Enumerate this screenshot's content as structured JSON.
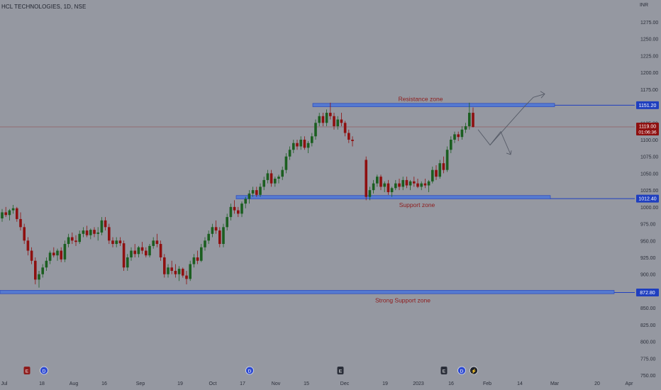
{
  "header": {
    "symbol": "HCL TECHNOLOGIES, 1D, NSE",
    "currency": "INR"
  },
  "colors": {
    "background": "#9598a1",
    "up": "#1b5e20",
    "down": "#8e1010",
    "zone_fill": "#3f6fe0",
    "zone_line": "#1f3fbf",
    "zone_text": "#8e1b1b",
    "axis_text": "#2a2e39",
    "price_line": "#8e1b1b"
  },
  "annotations": {
    "resistance_label": "Resistance zone",
    "support_label": "Support zone",
    "strong_support_label": "Strong Support zone"
  },
  "price_tags": {
    "resistance": "1151.20",
    "support": "1012.40",
    "strong_support": "872.80",
    "last_price": "1119.00",
    "countdown": "01:06:36"
  },
  "event_markers": [
    {
      "label": "E",
      "kind": "earnings"
    },
    {
      "label": "D",
      "kind": "dividend"
    },
    {
      "label": "D",
      "kind": "dividend"
    },
    {
      "label": "E",
      "kind": "earnings"
    },
    {
      "label": "E",
      "kind": "earnings"
    },
    {
      "label": "D",
      "kind": "dividend"
    },
    {
      "label": "⚡",
      "kind": "news"
    }
  ],
  "chart_data": {
    "type": "candlestick",
    "title": "HCL TECHNOLOGIES, 1D, NSE",
    "ylabel": "INR",
    "ylim": [
      742,
      1290
    ],
    "y_ticks": [
      "1275.00",
      "1250.00",
      "1225.00",
      "1200.00",
      "1175.00",
      "1150.00",
      "1125.00",
      "1100.00",
      "1075.00",
      "1050.00",
      "1025.00",
      "1000.00",
      "975.00",
      "950.00",
      "925.00",
      "900.00",
      "875.00",
      "850.00",
      "825.00",
      "800.00",
      "775.00",
      "750.00"
    ],
    "x_ticks": [
      "Jul",
      "18",
      "Aug",
      "16",
      "Sep",
      "19",
      "Oct",
      "17",
      "Nov",
      "15",
      "Dec",
      "19",
      "2023",
      "16",
      "Feb",
      "14",
      "Mar",
      "20",
      "Apr"
    ],
    "grid": false,
    "zones": [
      {
        "name": "Resistance zone",
        "low": 1149,
        "high": 1154,
        "level": 1151.2
      },
      {
        "name": "Support zone",
        "low": 1012,
        "high": 1017,
        "level": 1012.4
      },
      {
        "name": "Strong Support zone",
        "low": 871,
        "high": 876,
        "level": 872.8
      }
    ],
    "last_price": 1119.0,
    "ohlc": [
      [
        983,
        997,
        978,
        992
      ],
      [
        992,
        1000,
        985,
        988
      ],
      [
        988,
        997,
        980,
        995
      ],
      [
        995,
        1003,
        990,
        998
      ],
      [
        998,
        1000,
        978,
        982
      ],
      [
        982,
        992,
        965,
        970
      ],
      [
        970,
        975,
        945,
        950
      ],
      [
        950,
        955,
        928,
        935
      ],
      [
        935,
        940,
        915,
        920
      ],
      [
        920,
        925,
        885,
        892
      ],
      [
        892,
        905,
        880,
        900
      ],
      [
        900,
        915,
        895,
        910
      ],
      [
        910,
        925,
        905,
        920
      ],
      [
        920,
        935,
        915,
        932
      ],
      [
        932,
        940,
        925,
        928
      ],
      [
        928,
        938,
        920,
        935
      ],
      [
        935,
        940,
        918,
        922
      ],
      [
        922,
        950,
        918,
        945
      ],
      [
        945,
        960,
        940,
        955
      ],
      [
        955,
        962,
        945,
        950
      ],
      [
        950,
        958,
        942,
        948
      ],
      [
        948,
        965,
        945,
        960
      ],
      [
        960,
        970,
        955,
        965
      ],
      [
        965,
        972,
        955,
        958
      ],
      [
        958,
        968,
        952,
        966
      ],
      [
        966,
        970,
        955,
        960
      ],
      [
        960,
        970,
        950,
        962
      ],
      [
        962,
        985,
        958,
        980
      ],
      [
        980,
        985,
        965,
        970
      ],
      [
        970,
        975,
        945,
        950
      ],
      [
        950,
        955,
        940,
        945
      ],
      [
        945,
        955,
        940,
        950
      ],
      [
        950,
        955,
        942,
        946
      ],
      [
        946,
        950,
        905,
        910
      ],
      [
        910,
        930,
        905,
        925
      ],
      [
        925,
        940,
        920,
        935
      ],
      [
        935,
        945,
        925,
        930
      ],
      [
        930,
        942,
        925,
        940
      ],
      [
        940,
        948,
        930,
        935
      ],
      [
        935,
        940,
        925,
        928
      ],
      [
        928,
        945,
        925,
        942
      ],
      [
        942,
        955,
        938,
        950
      ],
      [
        950,
        960,
        940,
        945
      ],
      [
        945,
        950,
        920,
        925
      ],
      [
        925,
        930,
        895,
        900
      ],
      [
        900,
        915,
        895,
        910
      ],
      [
        910,
        920,
        900,
        905
      ],
      [
        905,
        915,
        895,
        900
      ],
      [
        900,
        912,
        890,
        908
      ],
      [
        908,
        910,
        895,
        898
      ],
      [
        898,
        905,
        885,
        893
      ],
      [
        893,
        920,
        890,
        915
      ],
      [
        915,
        930,
        910,
        925
      ],
      [
        925,
        935,
        915,
        920
      ],
      [
        920,
        945,
        918,
        940
      ],
      [
        940,
        955,
        935,
        950
      ],
      [
        950,
        965,
        945,
        960
      ],
      [
        960,
        975,
        955,
        970
      ],
      [
        970,
        980,
        960,
        965
      ],
      [
        965,
        970,
        940,
        945
      ],
      [
        945,
        975,
        940,
        970
      ],
      [
        970,
        990,
        965,
        985
      ],
      [
        985,
        1005,
        980,
        1000
      ],
      [
        1000,
        1010,
        990,
        995
      ],
      [
        995,
        1000,
        985,
        990
      ],
      [
        990,
        1008,
        985,
        1005
      ],
      [
        1005,
        1015,
        998,
        1012
      ],
      [
        1012,
        1025,
        1005,
        1020
      ],
      [
        1020,
        1030,
        1015,
        1025
      ],
      [
        1025,
        1030,
        1015,
        1018
      ],
      [
        1018,
        1035,
        1015,
        1030
      ],
      [
        1030,
        1045,
        1025,
        1040
      ],
      [
        1040,
        1055,
        1035,
        1050
      ],
      [
        1050,
        1055,
        1030,
        1035
      ],
      [
        1035,
        1045,
        1030,
        1042
      ],
      [
        1042,
        1048,
        1035,
        1045
      ],
      [
        1045,
        1060,
        1040,
        1055
      ],
      [
        1055,
        1080,
        1050,
        1075
      ],
      [
        1075,
        1090,
        1070,
        1085
      ],
      [
        1085,
        1100,
        1080,
        1095
      ],
      [
        1095,
        1100,
        1085,
        1090
      ],
      [
        1090,
        1105,
        1085,
        1100
      ],
      [
        1100,
        1105,
        1085,
        1088
      ],
      [
        1088,
        1098,
        1080,
        1095
      ],
      [
        1095,
        1110,
        1090,
        1105
      ],
      [
        1105,
        1130,
        1100,
        1125
      ],
      [
        1125,
        1140,
        1120,
        1135
      ],
      [
        1135,
        1140,
        1120,
        1125
      ],
      [
        1125,
        1145,
        1120,
        1140
      ],
      [
        1140,
        1155,
        1130,
        1135
      ],
      [
        1135,
        1140,
        1115,
        1120
      ],
      [
        1120,
        1135,
        1115,
        1130
      ],
      [
        1130,
        1140,
        1120,
        1125
      ],
      [
        1125,
        1128,
        1105,
        1110
      ],
      [
        1110,
        1115,
        1095,
        1100
      ],
      [
        1100,
        1105,
        1090,
        1098
      ],
      [
        1070,
        1075,
        1010,
        1015
      ],
      [
        1015,
        1030,
        1010,
        1025
      ],
      [
        1025,
        1040,
        1020,
        1035
      ],
      [
        1035,
        1048,
        1030,
        1045
      ],
      [
        1045,
        1048,
        1025,
        1030
      ],
      [
        1030,
        1038,
        1022,
        1035
      ],
      [
        1035,
        1040,
        1018,
        1022
      ],
      [
        1022,
        1030,
        1015,
        1028
      ],
      [
        1028,
        1040,
        1025,
        1035
      ],
      [
        1035,
        1042,
        1025,
        1030
      ],
      [
        1030,
        1045,
        1025,
        1040
      ],
      [
        1040,
        1045,
        1028,
        1032
      ],
      [
        1032,
        1040,
        1025,
        1038
      ],
      [
        1038,
        1045,
        1030,
        1035
      ],
      [
        1035,
        1042,
        1028,
        1030
      ],
      [
        1030,
        1038,
        1025,
        1035
      ],
      [
        1035,
        1042,
        1028,
        1032
      ],
      [
        1032,
        1040,
        1022,
        1038
      ],
      [
        1038,
        1060,
        1035,
        1055
      ],
      [
        1055,
        1062,
        1040,
        1045
      ],
      [
        1045,
        1070,
        1042,
        1065
      ],
      [
        1065,
        1075,
        1050,
        1055
      ],
      [
        1055,
        1090,
        1052,
        1085
      ],
      [
        1085,
        1105,
        1080,
        1100
      ],
      [
        1100,
        1112,
        1095,
        1108
      ],
      [
        1108,
        1112,
        1098,
        1104
      ],
      [
        1104,
        1120,
        1100,
        1115
      ],
      [
        1115,
        1125,
        1110,
        1120
      ],
      [
        1120,
        1155,
        1115,
        1140
      ],
      [
        1140,
        1148,
        1118,
        1119
      ]
    ],
    "projection": [
      {
        "path": "up",
        "points": [
          [
            1120,
            1115
          ],
          [
            1085,
            1092
          ],
          [
            1150,
            1150
          ],
          [
            1165,
            1163
          ],
          [
            1170,
            1168
          ]
        ]
      },
      {
        "path": "down",
        "points": [
          [
            1085,
            1092
          ],
          [
            1075,
            1078
          ]
        ]
      }
    ]
  }
}
